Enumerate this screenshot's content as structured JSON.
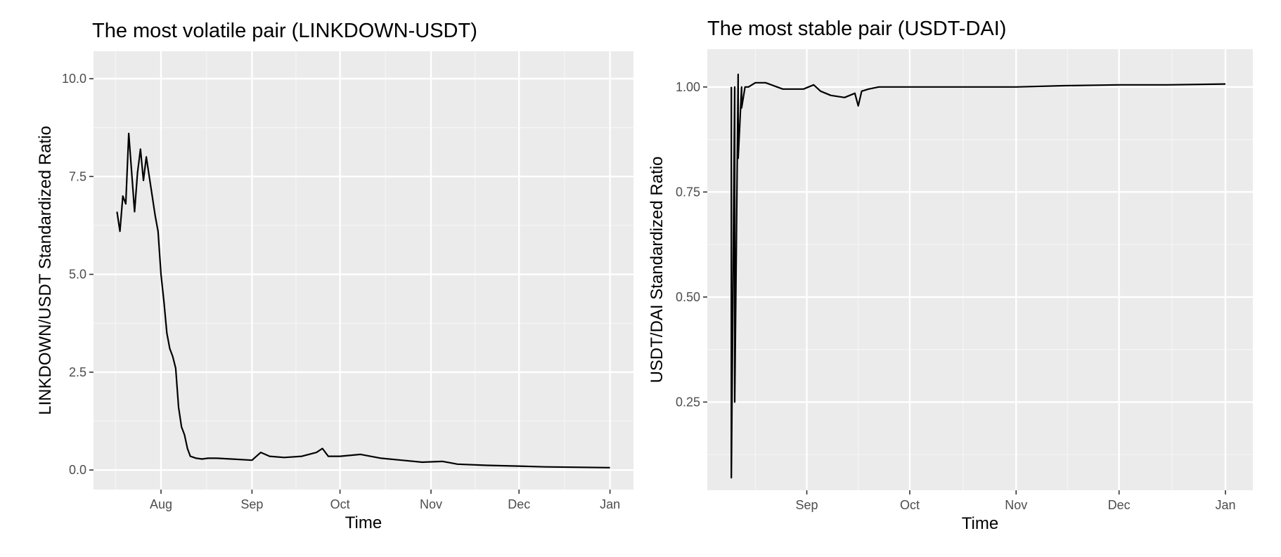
{
  "chart_data": [
    {
      "type": "line",
      "title": "The most volatile pair (LINKDOWN-USDT)",
      "xlabel": "Time",
      "ylabel": "LINKDOWN/USDT Standardized Ratio",
      "x_ticks": [
        "Aug",
        "Sep",
        "Oct",
        "Nov",
        "Dec",
        "Jan"
      ],
      "x_tick_dates": [
        "2020-08-01",
        "2020-09-01",
        "2020-10-01",
        "2020-11-01",
        "2020-12-01",
        "2021-01-01"
      ],
      "xlim": [
        "2020-07-09",
        "2021-01-09"
      ],
      "y_ticks": [
        "0.0",
        "2.5",
        "5.0",
        "7.5",
        "10.0"
      ],
      "y_tick_values": [
        0,
        2.5,
        5,
        7.5,
        10
      ],
      "ylim": [
        -0.5,
        10.7
      ],
      "grid": true,
      "legend": "none",
      "series": [
        {
          "x": [
            "2020-07-17",
            "2020-07-18",
            "2020-07-19",
            "2020-07-20",
            "2020-07-21",
            "2020-07-22",
            "2020-07-23",
            "2020-07-24",
            "2020-07-25",
            "2020-07-26",
            "2020-07-27",
            "2020-07-28",
            "2020-07-29",
            "2020-07-30",
            "2020-07-31",
            "2020-08-01",
            "2020-08-02",
            "2020-08-03",
            "2020-08-04",
            "2020-08-05",
            "2020-08-06",
            "2020-08-07",
            "2020-08-08",
            "2020-08-09",
            "2020-08-10",
            "2020-08-11",
            "2020-08-13",
            "2020-08-15",
            "2020-08-17",
            "2020-08-20",
            "2020-08-25",
            "2020-09-01",
            "2020-09-04",
            "2020-09-07",
            "2020-09-12",
            "2020-09-18",
            "2020-09-23",
            "2020-09-25",
            "2020-09-27",
            "2020-10-01",
            "2020-10-08",
            "2020-10-15",
            "2020-10-22",
            "2020-10-29",
            "2020-11-05",
            "2020-11-10",
            "2020-11-20",
            "2020-12-01",
            "2020-12-10",
            "2020-12-20",
            "2021-01-01"
          ],
          "y": [
            6.6,
            6.1,
            7.0,
            6.8,
            8.6,
            7.6,
            6.6,
            7.6,
            8.2,
            7.4,
            8.0,
            7.5,
            7.0,
            6.5,
            6.1,
            5.0,
            4.3,
            3.5,
            3.1,
            2.9,
            2.6,
            1.6,
            1.1,
            0.9,
            0.55,
            0.35,
            0.3,
            0.28,
            0.3,
            0.3,
            0.28,
            0.25,
            0.45,
            0.35,
            0.32,
            0.35,
            0.45,
            0.55,
            0.35,
            0.35,
            0.4,
            0.3,
            0.25,
            0.2,
            0.22,
            0.15,
            0.12,
            0.1,
            0.08,
            0.07,
            0.06
          ]
        }
      ]
    },
    {
      "type": "line",
      "title": "The most stable pair (USDT-DAI)",
      "xlabel": "Time",
      "ylabel": "USDT/DAI Standardized Ratio",
      "x_ticks": [
        "Sep",
        "Oct",
        "Nov",
        "Dec",
        "Jan"
      ],
      "x_tick_dates": [
        "2020-09-01",
        "2020-10-01",
        "2020-11-01",
        "2020-12-01",
        "2021-01-01"
      ],
      "xlim": [
        "2020-08-03",
        "2021-01-09"
      ],
      "y_ticks": [
        "0.25",
        "0.50",
        "0.75",
        "1.00"
      ],
      "y_tick_values": [
        0.25,
        0.5,
        0.75,
        1.0
      ],
      "ylim": [
        0.04,
        1.09
      ],
      "grid": true,
      "legend": "none",
      "series": [
        {
          "x": [
            "2020-08-10",
            "2020-08-10",
            "2020-08-11",
            "2020-08-11",
            "2020-08-12",
            "2020-08-12",
            "2020-08-13",
            "2020-08-13",
            "2020-08-14",
            "2020-08-15",
            "2020-08-17",
            "2020-08-20",
            "2020-08-25",
            "2020-08-31",
            "2020-09-03",
            "2020-09-05",
            "2020-09-08",
            "2020-09-12",
            "2020-09-15",
            "2020-09-16",
            "2020-09-17",
            "2020-09-19",
            "2020-09-22",
            "2020-10-01",
            "2020-10-15",
            "2020-11-01",
            "2020-11-15",
            "2020-12-01",
            "2020-12-15",
            "2021-01-01"
          ],
          "y": [
            1.0,
            0.07,
            1.0,
            0.25,
            1.03,
            0.83,
            1.0,
            0.95,
            1.0,
            1.0,
            1.01,
            1.01,
            0.995,
            0.995,
            1.005,
            0.99,
            0.98,
            0.975,
            0.985,
            0.955,
            0.99,
            0.995,
            1.0,
            1.0,
            1.0,
            1.0,
            1.003,
            1.005,
            1.005,
            1.007
          ]
        }
      ]
    }
  ]
}
